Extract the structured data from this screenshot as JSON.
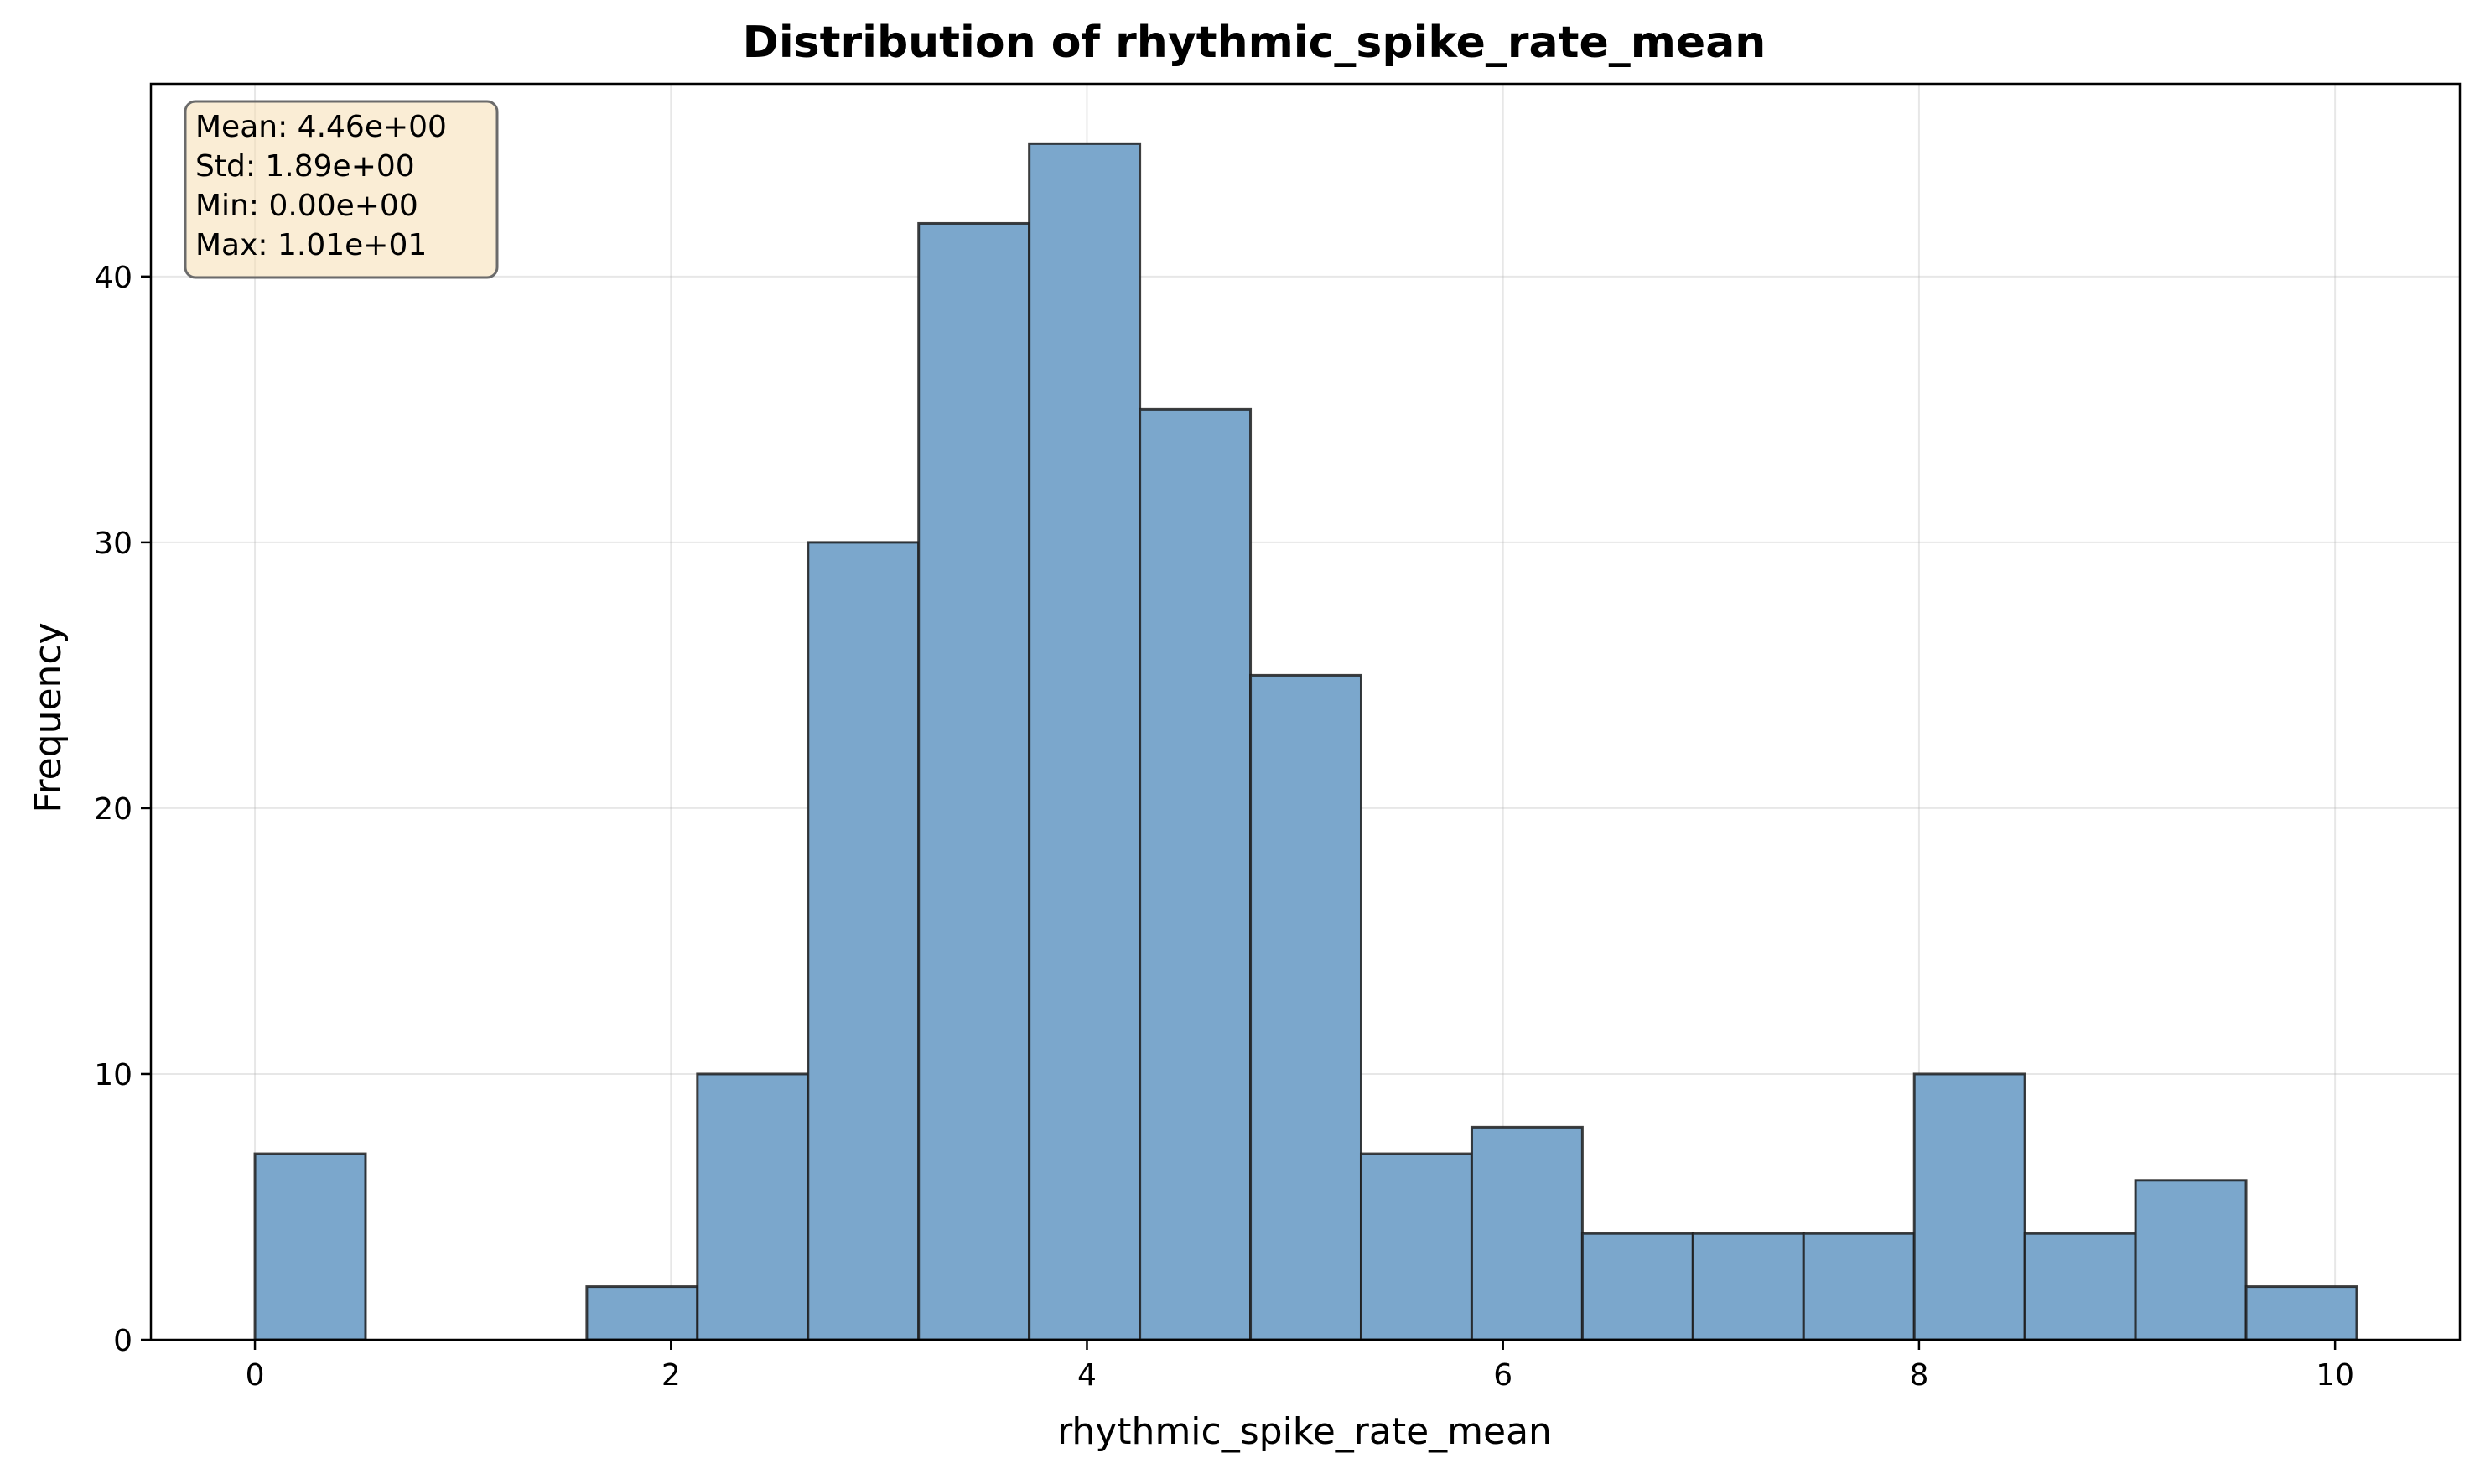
{
  "chart_data": {
    "type": "bar",
    "title": "Distribution of rhythmic_spike_rate_mean",
    "xlabel": "rhythmic_spike_rate_mean",
    "ylabel": "Frequency",
    "xlim": [
      -0.5,
      10.6
    ],
    "ylim": [
      0,
      47.25
    ],
    "xticks": [
      0,
      2,
      4,
      6,
      8,
      10
    ],
    "yticks": [
      0,
      10,
      20,
      30,
      40
    ],
    "grid": true,
    "bin_edges": [
      0.0,
      0.5318,
      1.0636,
      1.5954,
      2.1272,
      2.659,
      3.1908,
      3.7226,
      4.2544,
      4.7862,
      5.318,
      5.8498,
      6.3816,
      6.9134,
      7.4452,
      7.977,
      8.5088,
      9.0406,
      9.5724,
      10.1042
    ],
    "values": [
      7,
      0,
      0,
      2,
      10,
      30,
      42,
      45,
      35,
      25,
      7,
      8,
      4,
      4,
      4,
      10,
      4,
      6,
      2
    ],
    "bar_color": "#7ba7cc",
    "edge_color": "#1f1f1f",
    "stats_box": {
      "lines": [
        "Mean: 4.46e+00",
        "Std: 1.89e+00",
        "Min: 0.00e+00",
        "Max: 1.01e+01"
      ],
      "background": "#f5deb3",
      "placement": "top-left"
    }
  }
}
